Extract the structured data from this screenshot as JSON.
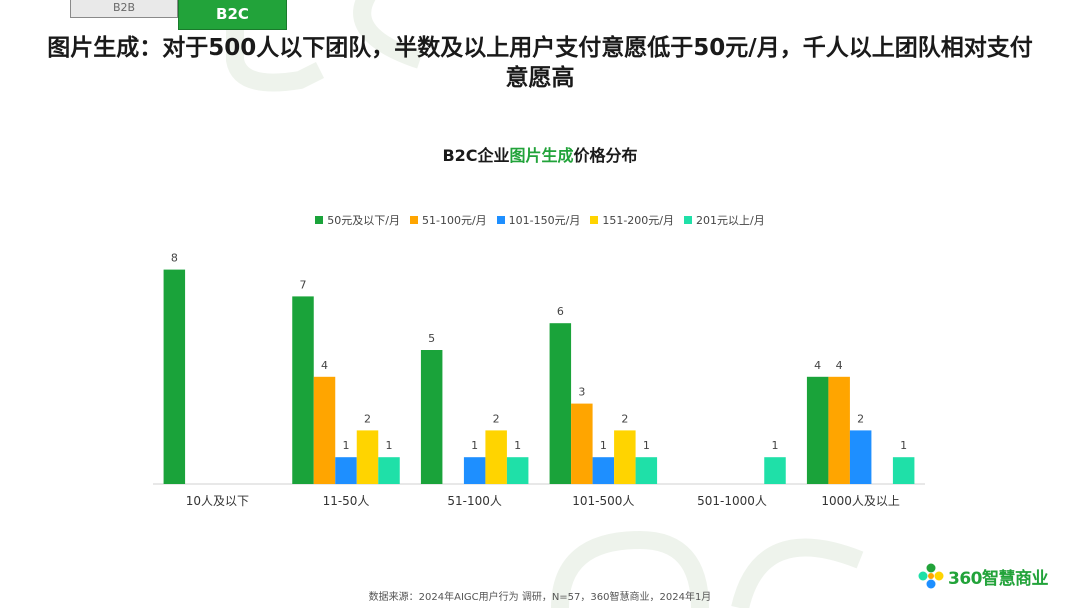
{
  "tabs": {
    "b2b": "B2B",
    "b2c": "B2C"
  },
  "headline": "图片生成：对于500人以下团队，半数及以上用户支付意愿低于50元/月，千人以上团队相对支付意愿高",
  "chart_data": {
    "type": "bar",
    "title_prefix": "B2C企业",
    "title_highlight": "图片生成",
    "title_suffix": "价格分布",
    "categories": [
      "10人及以下",
      "11-50人",
      "51-100人",
      "101-500人",
      "501-1000人",
      "1000人及以上"
    ],
    "series": [
      {
        "name": "50元及以下/月",
        "color": "#1aa33a",
        "values": [
          8,
          7,
          5,
          6,
          null,
          4
        ]
      },
      {
        "name": "51-100元/月",
        "color": "#ffa500",
        "values": [
          null,
          4,
          null,
          3,
          null,
          4
        ]
      },
      {
        "name": "101-150元/月",
        "color": "#1e8fff",
        "values": [
          null,
          1,
          1,
          1,
          null,
          2
        ]
      },
      {
        "name": "151-200元/月",
        "color": "#ffd400",
        "values": [
          null,
          2,
          2,
          2,
          null,
          null
        ]
      },
      {
        "name": "201元以上/月",
        "color": "#1fe0a8",
        "values": [
          null,
          1,
          1,
          1,
          1,
          1
        ]
      }
    ],
    "ylim": [
      0,
      8
    ],
    "legend_position": "top",
    "grid": false
  },
  "source": "数据来源：2024年AIGC用户行为 调研，N=57，360智慧商业，2024年1月",
  "logo": {
    "text": "360智慧商业",
    "color": "#22a33a"
  }
}
